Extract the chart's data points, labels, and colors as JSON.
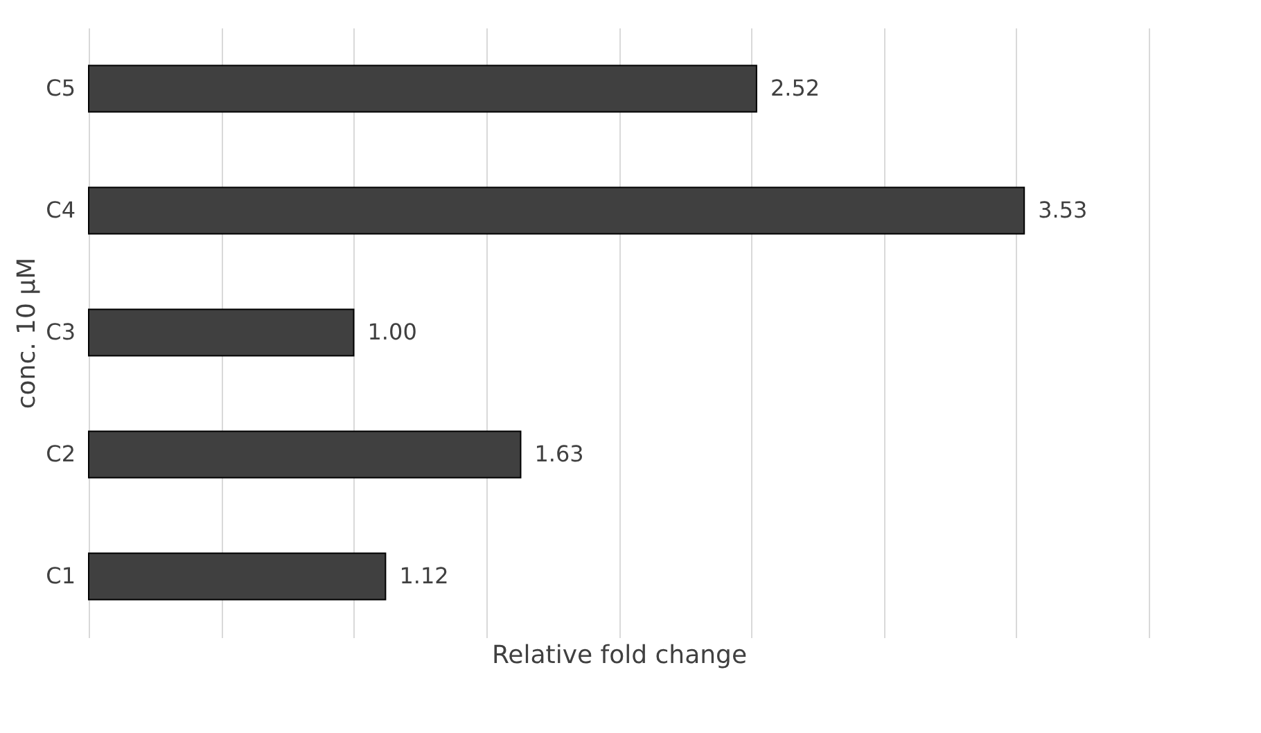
{
  "chart_data": {
    "type": "bar",
    "orientation": "horizontal",
    "categories": [
      "C5",
      "C4",
      "C3",
      "C2",
      "C1"
    ],
    "values": [
      2.52,
      3.53,
      1.0,
      1.63,
      1.12
    ],
    "value_labels": [
      "2.52",
      "3.53",
      "1.00",
      "1.63",
      "1.12"
    ],
    "color": "#404040",
    "xlabel": "Relative fold change",
    "ylabel": "conc. 10 µM",
    "xlim": [
      0,
      4
    ],
    "xticks": [
      {
        "value": 0,
        "label": null
      },
      {
        "value": 0.5,
        "label": null
      },
      {
        "value": 1,
        "label": null
      },
      {
        "value": 1.5,
        "label": null
      },
      {
        "value": 2,
        "label": null
      },
      {
        "value": 2.5,
        "label": null
      },
      {
        "value": 3,
        "label": null
      },
      {
        "value": 3.5,
        "label": null
      },
      {
        "value": 4,
        "label": null
      }
    ],
    "grid": "x",
    "tick_labels": "y"
  }
}
